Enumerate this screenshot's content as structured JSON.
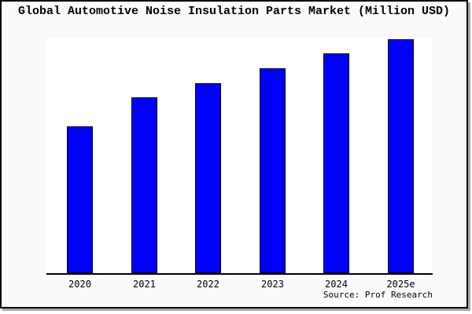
{
  "window": {
    "background": "#ffffff",
    "figure_background": "#fafafa",
    "plot_background": "#ffffff",
    "frame_border_color": "#000000",
    "frame_shadow_color": "#a9a9a9"
  },
  "title": "Global Automotive Noise Insulation Parts Market (Million USD)",
  "source_note": "Source: Prof Research",
  "chart_data": {
    "type": "bar",
    "title": "Global Automotive Noise Insulation Parts Market (Million USD)",
    "categories": [
      "2020",
      "2021",
      "2022",
      "2023",
      "2024",
      "2025e"
    ],
    "values": [
      189,
      226,
      244,
      263,
      282,
      300
    ],
    "values_note": "relative bar heights in pixels; chart shows no y-axis scale or data labels",
    "xlabel": "",
    "ylabel": "",
    "legend": null,
    "grid": false,
    "bar_color": "#0000ff",
    "bar_border_color": "#000000",
    "axis_color": "#000000"
  }
}
